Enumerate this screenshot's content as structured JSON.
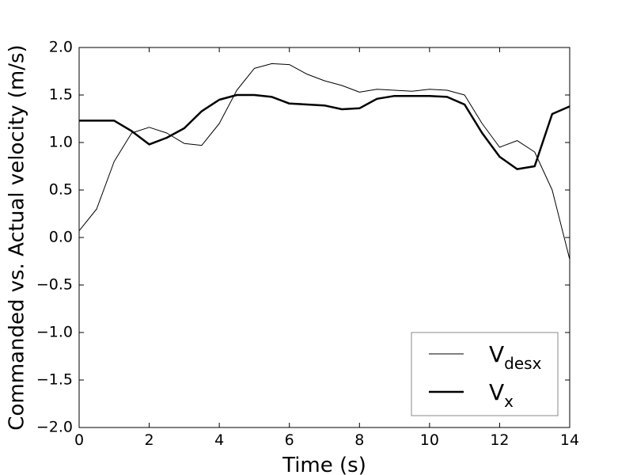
{
  "chart_data": {
    "type": "line",
    "xlabel": "Time (s)",
    "ylabel": "Commanded vs. Actual velocity (m/s)",
    "x": [
      0,
      0.5,
      1,
      1.5,
      2,
      2.5,
      3,
      3.5,
      4,
      4.5,
      5,
      5.5,
      6,
      6.5,
      7,
      7.5,
      8,
      8.5,
      9,
      9.5,
      10,
      10.5,
      11,
      11.5,
      12,
      12.5,
      13,
      13.5,
      14
    ],
    "series": [
      {
        "name": "V",
        "subscript": "desx",
        "color": "#000000",
        "width": 1,
        "values": [
          0.07,
          0.3,
          0.8,
          1.1,
          1.16,
          1.1,
          0.99,
          0.97,
          1.2,
          1.55,
          1.78,
          1.83,
          1.82,
          1.72,
          1.65,
          1.6,
          1.53,
          1.56,
          1.55,
          1.54,
          1.56,
          1.55,
          1.5,
          1.2,
          0.95,
          1.02,
          0.9,
          0.5,
          -0.23
        ]
      },
      {
        "name": "V",
        "subscript": "x",
        "color": "#000000",
        "width": 2.5,
        "values": [
          1.23,
          1.23,
          1.23,
          1.12,
          0.98,
          1.05,
          1.15,
          1.33,
          1.45,
          1.5,
          1.5,
          1.48,
          1.41,
          1.4,
          1.39,
          1.35,
          1.36,
          1.46,
          1.49,
          1.49,
          1.49,
          1.48,
          1.4,
          1.1,
          0.85,
          0.72,
          0.75,
          1.3,
          1.38
        ]
      }
    ],
    "xlim": [
      0,
      14
    ],
    "xticks": [
      0,
      2,
      4,
      6,
      8,
      10,
      12,
      14
    ],
    "ylim": [
      -2,
      2
    ],
    "yticks": [
      {
        "value": -2,
        "label": "−2.0"
      },
      {
        "value": -1.5,
        "label": "−1.5"
      },
      {
        "value": -1,
        "label": "−1.0"
      },
      {
        "value": -0.5,
        "label": "−0.5"
      },
      {
        "value": 0,
        "label": "0.0"
      },
      0.5,
      {
        "value": 1,
        "label": "1.0"
      },
      1.5,
      {
        "value": 2,
        "label": "2.0"
      }
    ],
    "grid": false,
    "legend": "lower right"
  }
}
